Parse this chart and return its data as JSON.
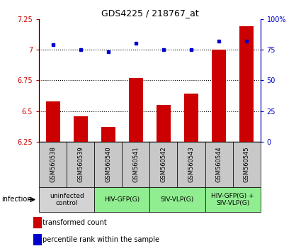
{
  "title": "GDS4225 / 218767_at",
  "samples": [
    "GSM560538",
    "GSM560539",
    "GSM560540",
    "GSM560541",
    "GSM560542",
    "GSM560543",
    "GSM560544",
    "GSM560545"
  ],
  "bar_values": [
    6.58,
    6.46,
    6.37,
    6.77,
    6.55,
    6.64,
    7.0,
    7.19
  ],
  "dot_values": [
    79,
    75,
    73,
    80,
    75,
    75,
    82,
    82
  ],
  "ylim_left": [
    6.25,
    7.25
  ],
  "ylim_right": [
    0,
    100
  ],
  "yticks_left": [
    6.25,
    6.5,
    6.75,
    7.0,
    7.25
  ],
  "yticks_right": [
    0,
    25,
    50,
    75,
    100
  ],
  "ytick_labels_left": [
    "6.25",
    "6.5",
    "6.75",
    "7",
    "7.25"
  ],
  "ytick_labels_right": [
    "0",
    "25",
    "50",
    "75",
    "100%"
  ],
  "hlines": [
    6.5,
    6.75,
    7.0
  ],
  "bar_color": "#cc0000",
  "dot_color": "#0000cc",
  "groups": [
    {
      "label": "uninfected\ncontrol",
      "start": 0,
      "end": 2,
      "color": "#d3d3d3"
    },
    {
      "label": "HIV-GFP(G)",
      "start": 2,
      "end": 4,
      "color": "#90ee90"
    },
    {
      "label": "SIV-VLP(G)",
      "start": 4,
      "end": 6,
      "color": "#90ee90"
    },
    {
      "label": "HIV-GFP(G) +\nSIV-VLP(G)",
      "start": 6,
      "end": 8,
      "color": "#90ee90"
    }
  ],
  "infection_label": "infection",
  "legend_bar_label": "transformed count",
  "legend_dot_label": "percentile rank within the sample",
  "sample_box_color": "#c8c8c8",
  "background_color": "#ffffff",
  "bar_width": 0.5
}
